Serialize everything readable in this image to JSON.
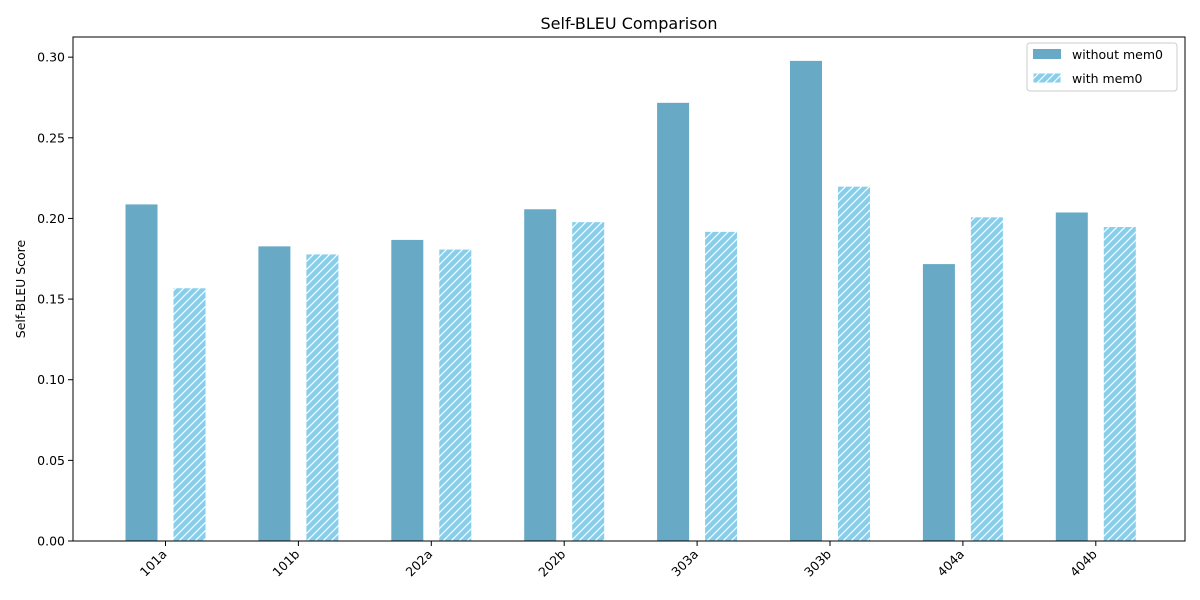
{
  "chart_data": {
    "type": "bar",
    "title": "Self-BLEU Comparison",
    "xlabel": "",
    "ylabel": "Self-BLEU Score",
    "categories": [
      "101a",
      "101b",
      "202a",
      "202b",
      "303a",
      "303b",
      "404a",
      "404b"
    ],
    "series": [
      {
        "name": "without mem0",
        "values": [
          0.209,
          0.183,
          0.187,
          0.206,
          0.272,
          0.298,
          0.172,
          0.204
        ],
        "color": "#68a9c6",
        "pattern": "solid"
      },
      {
        "name": "with mem0",
        "values": [
          0.157,
          0.178,
          0.181,
          0.198,
          0.192,
          0.22,
          0.201,
          0.195
        ],
        "color": "#87ceeb",
        "pattern": "diagonal-hatch"
      }
    ],
    "ylim": [
      0,
      0.3125
    ],
    "yticks": [
      0.0,
      0.05,
      0.1,
      0.15,
      0.2,
      0.25,
      0.3
    ],
    "ytick_labels": [
      "0.00",
      "0.05",
      "0.10",
      "0.15",
      "0.20",
      "0.25",
      "0.30"
    ],
    "grid": false,
    "legend_position": "top-right",
    "xtick_rotation": "45 degrees"
  }
}
